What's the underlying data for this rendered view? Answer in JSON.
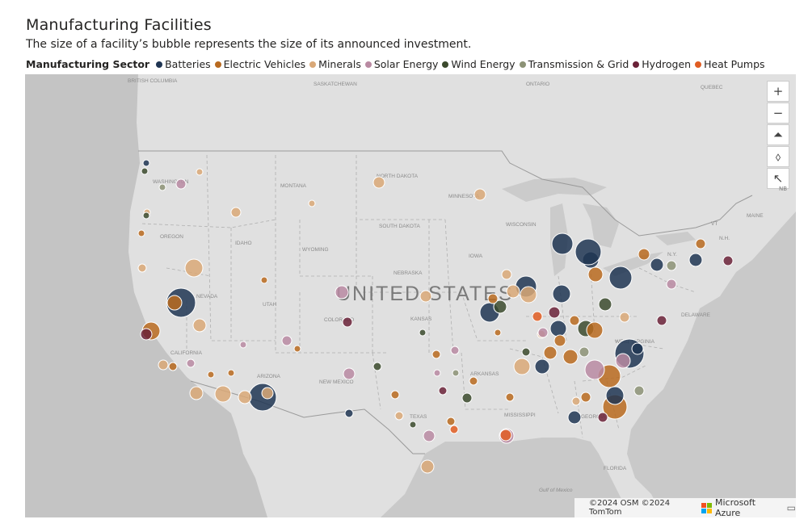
{
  "header": {
    "title": "Manufacturing Facilities",
    "subtitle": "The size of a facility’s bubble represents the size of its announced investment."
  },
  "legend": {
    "title": "Manufacturing Sector",
    "items": [
      {
        "label": "Batteries",
        "color": "#1f3552"
      },
      {
        "label": "Electric Vehicles",
        "color": "#b86a1f"
      },
      {
        "label": "Minerals",
        "color": "#d9a877"
      },
      {
        "label": "Solar Energy",
        "color": "#b98aa2"
      },
      {
        "label": "Wind Energy",
        "color": "#3b4a2d"
      },
      {
        "label": "Transmission & Grid",
        "color": "#8c9276"
      },
      {
        "label": "Hydrogen",
        "color": "#6b2238"
      },
      {
        "label": "Heat Pumps",
        "color": "#e05d22"
      }
    ]
  },
  "map": {
    "country_label": "UNITED STATES",
    "labels": [
      "BRITISH COLUMBIA",
      "SASKATCHEWAN",
      "ONTARIO",
      "QUEBEC",
      "WASHINGTON",
      "MONTANA",
      "NORTH DAKOTA",
      "MINNESOTA",
      "OREGON",
      "IDAHO",
      "WYOMING",
      "SOUTH DAKOTA",
      "WISCONSIN",
      "NEVADA",
      "UTAH",
      "NEBRASKA",
      "IOWA",
      "COLORADO",
      "KANSAS",
      "CALIFORNIA",
      "ARIZONA",
      "NEW MEXICO",
      "ARKANSAS",
      "TEXAS",
      "MISSISSIPPI",
      "GEORGIA",
      "FLORIDA",
      "WEST VIRGINIA",
      "N.Y.",
      "DELAWARE",
      "MAINE",
      "VT",
      "N.H.",
      "Gulf of Mexico"
    ],
    "controls": {
      "zoom_in": "+",
      "zoom_out": "−",
      "pitch": "⏶",
      "compass": "⬨",
      "select": "↖",
      "nb": "NB"
    },
    "attribution": "©2024 OSM ©2024 TomTom",
    "provider": "Microsoft Azure"
  }
}
